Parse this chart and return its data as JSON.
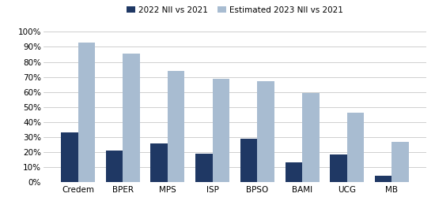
{
  "categories": [
    "Credem",
    "BPER",
    "MPS",
    "ISP",
    "BPSO",
    "BAMI",
    "UCG",
    "MB"
  ],
  "series_2022": [
    0.33,
    0.21,
    0.26,
    0.19,
    0.29,
    0.135,
    0.185,
    0.045
  ],
  "series_2023": [
    0.93,
    0.855,
    0.74,
    0.69,
    0.67,
    0.595,
    0.465,
    0.27
  ],
  "color_2022": "#1f3864",
  "color_2023": "#a8bcd1",
  "legend_2022": "2022 NII vs 2021",
  "legend_2023": "Estimated 2023 NII vs 2021",
  "ylim": [
    0,
    1.0
  ],
  "yticks": [
    0,
    0.1,
    0.2,
    0.3,
    0.4,
    0.5,
    0.6,
    0.7,
    0.8,
    0.9,
    1.0
  ],
  "background_color": "#ffffff",
  "grid_color": "#c8c8c8",
  "bar_width": 0.38,
  "figwidth": 5.5,
  "figheight": 2.69,
  "dpi": 100
}
